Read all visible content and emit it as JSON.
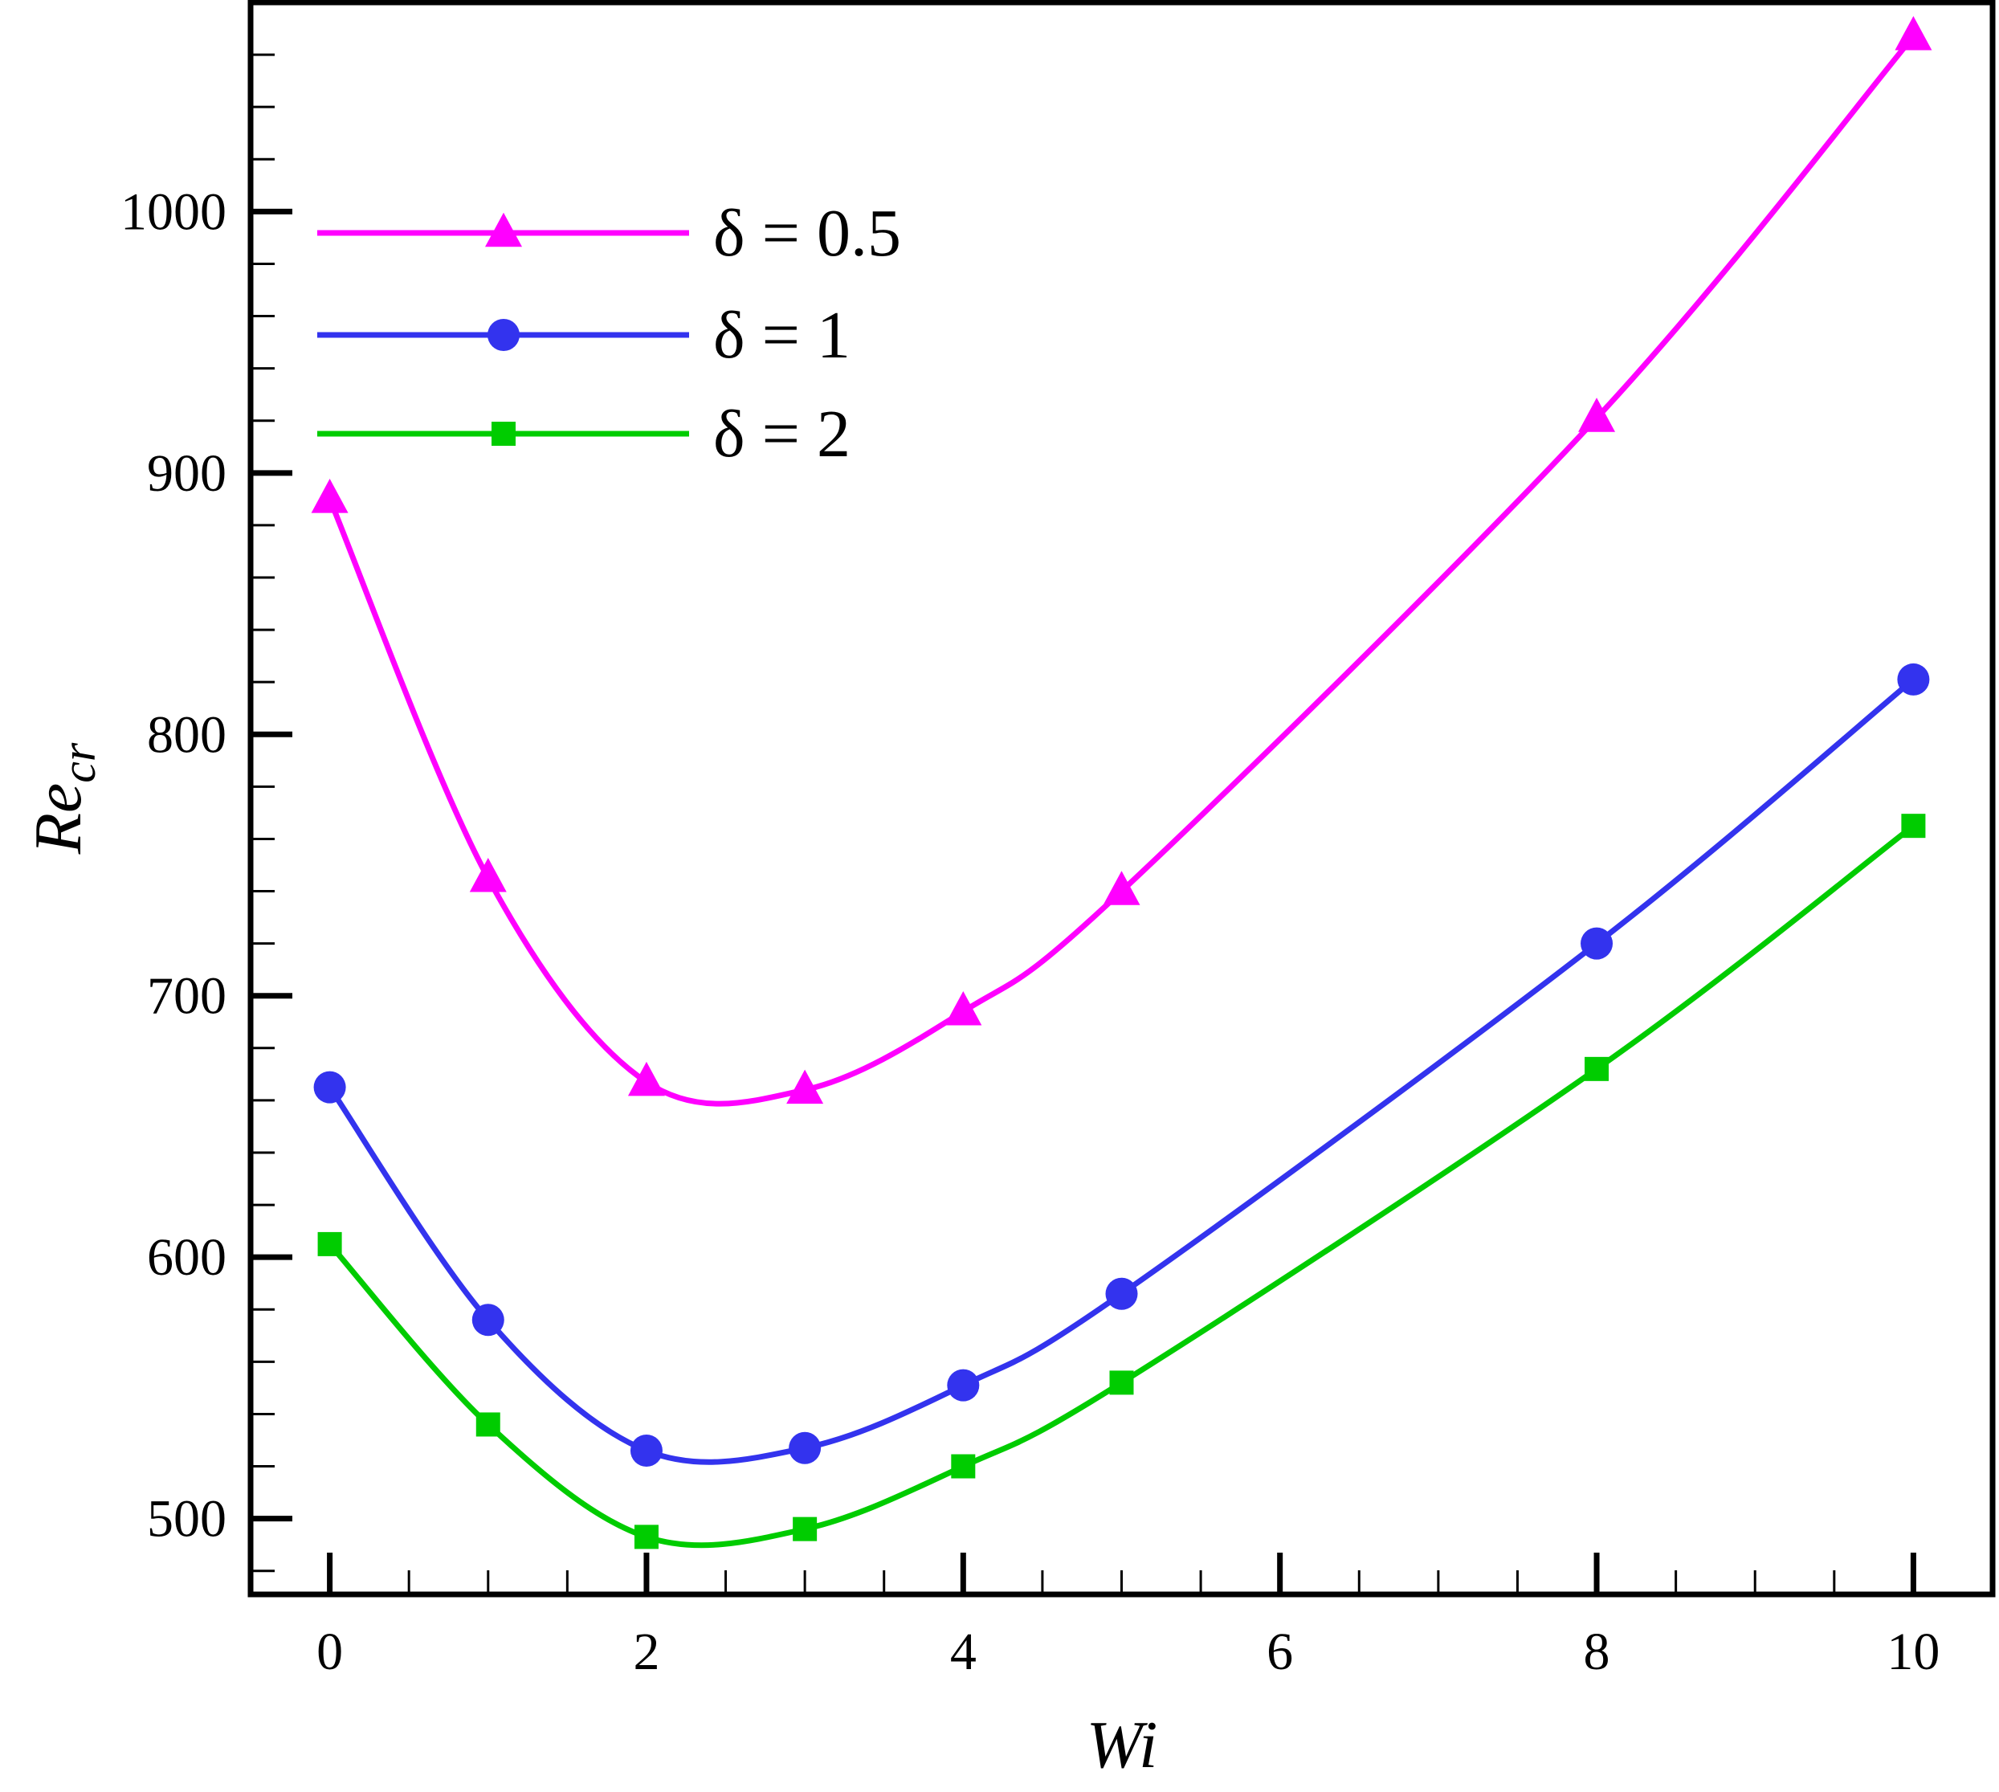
{
  "chart_data": {
    "type": "line",
    "xlabel": "Wi",
    "ylabel_main": "Re",
    "ylabel_sub": "cr",
    "xlim": [
      -0.5,
      10.5
    ],
    "ylim": [
      471,
      1080
    ],
    "x_ticks": [
      0,
      2,
      4,
      6,
      8,
      10
    ],
    "x_tick_labels": [
      "0",
      "2",
      "4",
      "6",
      "8",
      "10"
    ],
    "x_minor_step": 0.5,
    "y_ticks": [
      500,
      600,
      700,
      800,
      900,
      1000
    ],
    "y_tick_labels": [
      "500",
      "600",
      "700",
      "800",
      "900",
      "1000"
    ],
    "y_minor_step": 20,
    "grid": false,
    "legend_position": "top-left",
    "series": [
      {
        "name": "δ = 0.5",
        "color": "#ff00ff",
        "marker": "triangle",
        "x": [
          0,
          1,
          2,
          3,
          4,
          5,
          8,
          10
        ],
        "values": [
          890,
          745,
          667,
          664,
          694,
          740,
          921,
          1067
        ]
      },
      {
        "name": "δ = 1",
        "color": "#3333ee",
        "marker": "circle",
        "x": [
          0,
          1,
          2,
          3,
          4,
          5,
          8,
          10
        ],
        "values": [
          665,
          576,
          526,
          527,
          551,
          586,
          720,
          821
        ]
      },
      {
        "name": "δ = 2",
        "color": "#00cc00",
        "marker": "square",
        "x": [
          0,
          1,
          2,
          3,
          4,
          5,
          8,
          10
        ],
        "values": [
          605,
          536,
          493,
          496,
          520,
          552,
          672,
          765
        ]
      }
    ]
  }
}
